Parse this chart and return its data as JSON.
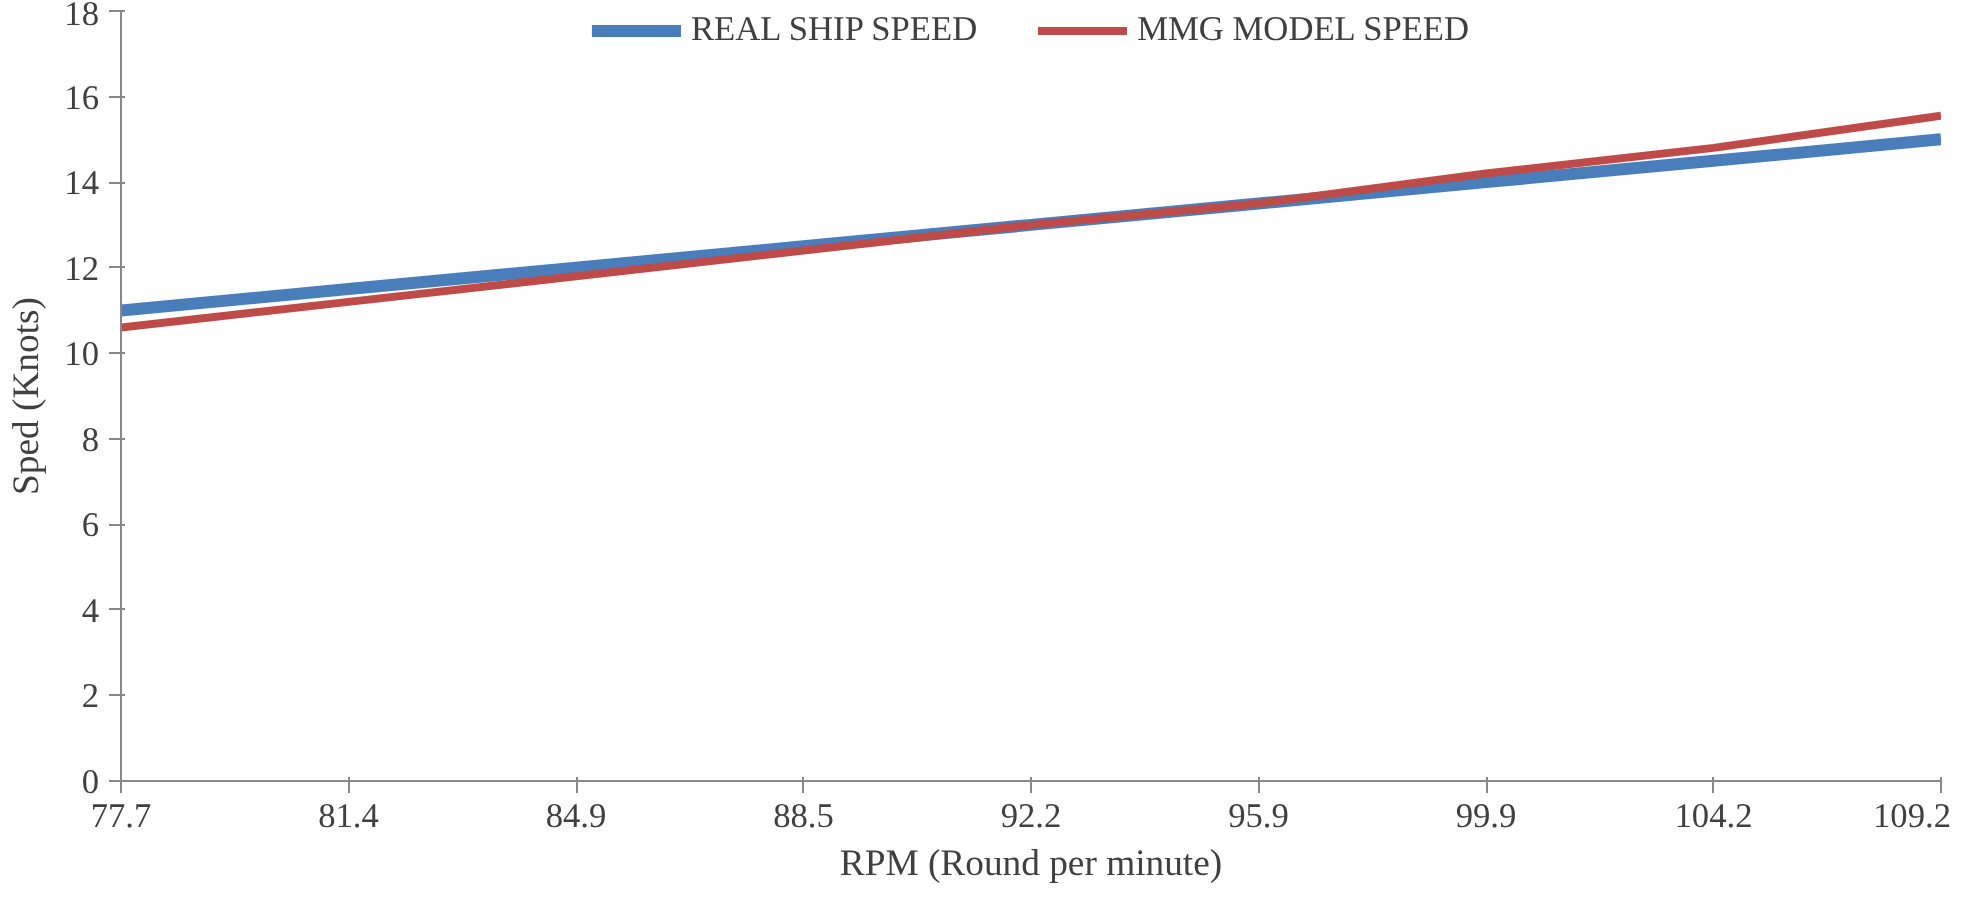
{
  "chart_data": {
    "type": "line",
    "xlabel": "RPM (Round per minute)",
    "ylabel": "Sped (Knots)",
    "categories": [
      "77.7",
      "81.4",
      "84.9",
      "88.5",
      "92.2",
      "95.9",
      "99.9",
      "104.2",
      "109.2"
    ],
    "series": [
      {
        "name": "REAL SHIP SPEED",
        "color": "#4a7ebb",
        "values": [
          11.0,
          11.5,
          12.0,
          12.5,
          13.0,
          13.5,
          14.0,
          14.5,
          15.0
        ]
      },
      {
        "name": "MMG MODEL SPEED",
        "color": "#be4b48",
        "values": [
          10.6,
          11.2,
          11.8,
          12.4,
          13.0,
          13.5,
          14.2,
          14.8,
          15.55
        ]
      }
    ],
    "ylim": [
      0,
      18
    ],
    "yticks": [
      0,
      2,
      4,
      6,
      8,
      10,
      12,
      14,
      16,
      18
    ],
    "grid": false,
    "legend": "top",
    "marker": "none",
    "line_style": "solid"
  }
}
